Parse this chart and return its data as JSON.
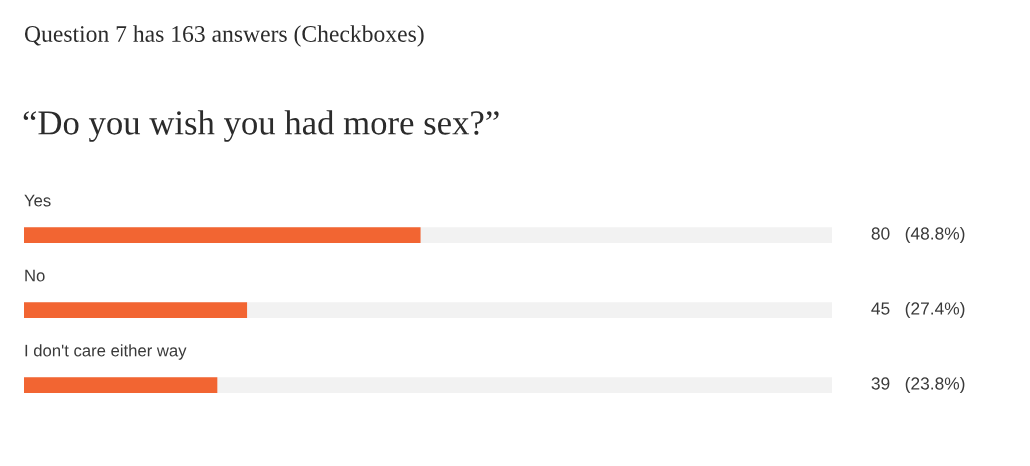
{
  "chart_data": {
    "type": "bar",
    "orientation": "horizontal",
    "title": "Question 7 has 163 answers (Checkboxes)",
    "subtitle": "“Do you wish you had more sex?”",
    "categories": [
      "Yes",
      "No",
      "I don't care either way"
    ],
    "values": [
      80,
      45,
      39
    ],
    "color": "#f26532",
    "xlim": [
      0,
      163
    ],
    "value_labels": [
      "80   (48.8%)",
      "45   (27.4%)",
      "39   (23.8%)"
    ],
    "data_labels": false
  }
}
